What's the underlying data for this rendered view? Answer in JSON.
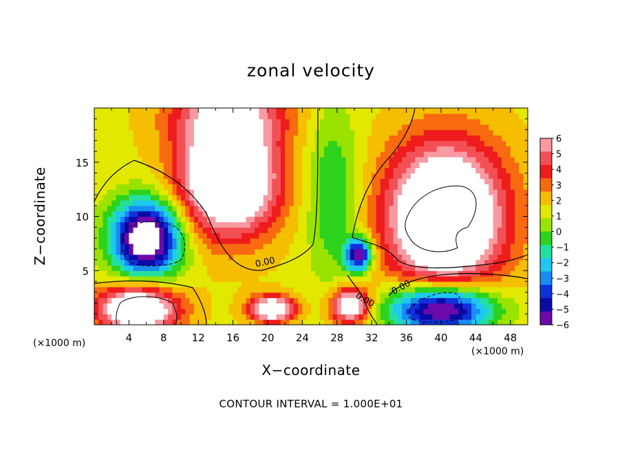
{
  "chart_data": {
    "type": "heatmap",
    "title": "zonal velocity",
    "xlabel": "X−coordinate",
    "ylabel": "Z−coordinate",
    "x_unit_left": "(×1000 m)",
    "x_unit_right": "(×1000 m)",
    "footer": "CONTOUR INTERVAL = 1.000E+01",
    "xlim": [
      0,
      50
    ],
    "ylim": [
      0,
      20
    ],
    "x_ticks": [
      4,
      8,
      12,
      16,
      20,
      24,
      28,
      32,
      36,
      40,
      44,
      48
    ],
    "x_tick_labels": [
      "4",
      "8",
      "12",
      "16",
      "20",
      "24",
      "28",
      "32",
      "36",
      "40",
      "44",
      "48"
    ],
    "y_ticks": [
      5,
      10,
      15
    ],
    "y_tick_labels": [
      "5",
      "10",
      "15"
    ],
    "contour_labels": [
      "0.00",
      "0.00",
      "0.00"
    ],
    "colorbar": {
      "levels": [
        6,
        5,
        4,
        3,
        2,
        1,
        0,
        -1,
        -2,
        -3,
        -4,
        -5,
        -6
      ],
      "labels": [
        "6",
        "5",
        "4",
        "3",
        "2",
        "1",
        "0",
        "−1",
        "−2",
        "−3",
        "−4",
        "−5",
        "−6"
      ],
      "colors": [
        "#f89aa2",
        "#f25055",
        "#ee1c1c",
        "#f76a10",
        "#f5be00",
        "#e2e800",
        "#9ae200",
        "#2dd21c",
        "#24e0a0",
        "#1ec8ee",
        "#188cf0",
        "#1030dc",
        "#0a0aa8",
        "#6a0aaa"
      ]
    },
    "color_scale": [
      "#6a0aaa",
      "#0a0aa8",
      "#1030dc",
      "#188cf0",
      "#1ec8ee",
      "#24e0a0",
      "#2dd21c",
      "#9ae200",
      "#e2e800",
      "#f5be00",
      "#f76a10",
      "#ee1c1c",
      "#f25055",
      "#f89aa2"
    ],
    "features": [
      {
        "x": 15.5,
        "z": 13.5,
        "peak": 9,
        "rx": 5.5,
        "rz": 5.0
      },
      {
        "x": 40.5,
        "z": 10.0,
        "peak": 9.5,
        "rx": 6.5,
        "rz": 6.5
      },
      {
        "x": 15.5,
        "z": 19.5,
        "peak": 4.2,
        "rx": 6.5,
        "rz": 3.0
      },
      {
        "x": 5.0,
        "z": 1.5,
        "peak": 8,
        "rx": 4.5,
        "rz": 2.2
      },
      {
        "x": 20.5,
        "z": 1.5,
        "peak": 7,
        "rx": 2.5,
        "rz": 1.2
      },
      {
        "x": 29.5,
        "z": 1.8,
        "peak": 7,
        "rx": 2.2,
        "rz": 1.6
      },
      {
        "x": 6.0,
        "z": 8.0,
        "peak": -9.5,
        "rx": 4.0,
        "rz": 3.5
      },
      {
        "x": 40.0,
        "z": 1.5,
        "peak": -9,
        "rx": 6.0,
        "rz": 2.3
      },
      {
        "x": 30.5,
        "z": 6.5,
        "peak": -7.5,
        "rx": 1.5,
        "rz": 1.5
      },
      {
        "x": 27.5,
        "z": 12.0,
        "peak": -2.5,
        "rx": 3.0,
        "rz": 8.0
      }
    ],
    "background_value": 1.5,
    "nx": 100,
    "nz": 40
  }
}
